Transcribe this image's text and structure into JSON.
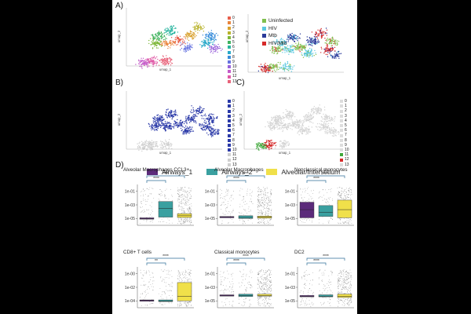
{
  "panel_labels": {
    "a": "A)",
    "b": "B)",
    "c": "C)",
    "d": "D)"
  },
  "umap_axes": {
    "x": "umap_1",
    "y": "umap_2"
  },
  "cluster_legend": [
    "0",
    "1",
    "2",
    "3",
    "4",
    "5",
    "6",
    "7",
    "8",
    "9",
    "10",
    "11",
    "12",
    "13"
  ],
  "cluster_colors": [
    "#e8604c",
    "#e9843c",
    "#d9a12e",
    "#b8b22a",
    "#7fb83a",
    "#3fb35e",
    "#2bb5a0",
    "#29a9c9",
    "#3a8ddb",
    "#6673e0",
    "#9a62db",
    "#c45bc9",
    "#e05aa6",
    "#e8637a"
  ],
  "condition_legend": [
    {
      "label": "Uninfected",
      "color": "#7fbf4d"
    },
    {
      "label": "HIV",
      "color": "#5bc8e0"
    },
    {
      "label": "Mtb",
      "color": "#2a3a9a"
    },
    {
      "label": "HIV/Mtb",
      "color": "#d62a2a"
    }
  ],
  "location_legend": [
    {
      "label": "Airways_1",
      "color": "#5b2a7a"
    },
    {
      "label": "Airways_2",
      "color": "#3aa0a0"
    },
    {
      "label": "Alveolar/Interstitium",
      "color": "#f0e04a"
    }
  ],
  "chart_data": [
    {
      "type": "box",
      "title": "Alveolar Macrophages CCL3+",
      "ytick_labels": [
        "1e-01",
        "1e-03",
        "1e-05"
      ],
      "significance": [
        "****",
        "****"
      ],
      "boxes": [
        {
          "group": "Airways_1",
          "q1": -5.1,
          "median": -5.0,
          "q3": -4.9
        },
        {
          "group": "Airways_2",
          "q1": -4.8,
          "median": -3.5,
          "q3": -2.5
        },
        {
          "group": "Alveolar/Interstitium",
          "q1": -4.85,
          "median": -4.6,
          "q3": -4.3
        }
      ],
      "ylim": [
        -6,
        0
      ]
    },
    {
      "type": "box",
      "title": "Alveolar Macrophages",
      "ytick_labels": [
        "1e-01",
        "1e-03",
        "1e-05"
      ],
      "significance": [
        "****",
        "****"
      ],
      "boxes": [
        {
          "group": "Airways_1",
          "q1": -4.9,
          "median": -4.8,
          "q3": -4.7
        },
        {
          "group": "Airways_2",
          "q1": -5.0,
          "median": -4.85,
          "q3": -4.6
        },
        {
          "group": "Alveolar/Interstitium",
          "q1": -4.95,
          "median": -4.8,
          "q3": -4.65
        }
      ],
      "ylim": [
        -6,
        0
      ]
    },
    {
      "type": "box",
      "title": "Nonclassical monocytes",
      "ytick_labels": [
        "1e-01",
        "1e-03",
        "1e-05"
      ],
      "significance": [
        "****",
        "****"
      ],
      "boxes": [
        {
          "group": "Airways_1",
          "q1": -4.9,
          "median": -3.7,
          "q3": -2.6
        },
        {
          "group": "Airways_2",
          "q1": -4.7,
          "median": -4.1,
          "q3": -3.1
        },
        {
          "group": "Alveolar/Interstitium",
          "q1": -4.9,
          "median": -3.7,
          "q3": -2.3
        }
      ],
      "ylim": [
        -6,
        0
      ]
    },
    {
      "type": "box",
      "title": "CD8+ T cells",
      "ytick_labels": [
        "1e-00",
        "1e-02",
        "1e-04"
      ],
      "significance": [
        "**",
        "****"
      ],
      "boxes": [
        {
          "group": "Airways_1",
          "q1": -4.05,
          "median": -3.95,
          "q3": -3.85
        },
        {
          "group": "Airways_2",
          "q1": -4.1,
          "median": -4.0,
          "q3": -3.85
        },
        {
          "group": "Alveolar/Interstitium",
          "q1": -4.0,
          "median": -3.3,
          "q3": -1.3
        }
      ],
      "ylim": [
        -5,
        1
      ]
    },
    {
      "type": "box",
      "title": "Classical monocytes",
      "ytick_labels": [
        "1e-01",
        "1e-03",
        "1e-05"
      ],
      "significance": [
        "****",
        "****"
      ],
      "boxes": [
        {
          "group": "Airways_1",
          "q1": -4.3,
          "median": -4.2,
          "q3": -4.1
        },
        {
          "group": "Airways_2",
          "q1": -4.35,
          "median": -4.2,
          "q3": -4.0
        },
        {
          "group": "Alveolar/Interstitium",
          "q1": -4.3,
          "median": -4.2,
          "q3": -4.0
        }
      ],
      "ylim": [
        -6,
        0
      ]
    },
    {
      "type": "box",
      "title": "DC2",
      "ytick_labels": [
        "1e-01",
        "1e-03",
        "1e-05"
      ],
      "significance": [
        "****",
        "****"
      ],
      "boxes": [
        {
          "group": "Airways_1",
          "q1": -4.4,
          "median": -4.3,
          "q3": -4.2
        },
        {
          "group": "Airways_2",
          "q1": -4.4,
          "median": -4.3,
          "q3": -4.1
        },
        {
          "group": "Alveolar/Interstitium",
          "q1": -4.5,
          "median": -4.3,
          "q3": -4.0
        }
      ],
      "ylim": [
        -6,
        0
      ]
    }
  ]
}
